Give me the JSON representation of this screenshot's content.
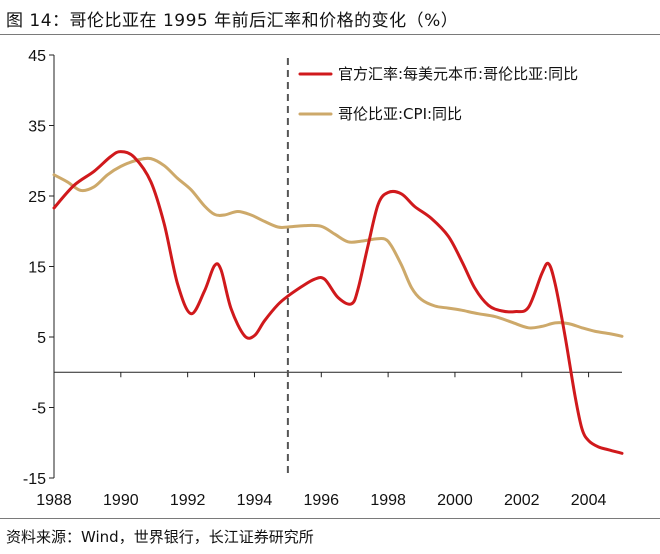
{
  "title": "图 14：哥伦比亚在 1995 年前后汇率和价格的变化（%）",
  "source": "资料来源：Wind，世界银行，长江证券研究所",
  "chart_data": {
    "type": "line",
    "title": "图 14：哥伦比亚在 1995 年前后汇率和价格的变化（%）",
    "xlabel": "",
    "ylabel": "",
    "xlim": [
      1988,
      2005
    ],
    "ylim": [
      -15,
      45
    ],
    "y_ticks": [
      "45",
      "35",
      "25",
      "15",
      "5",
      "-5",
      "-15"
    ],
    "x_ticks": [
      "1988",
      "1990",
      "1992",
      "1994",
      "1996",
      "1998",
      "2000",
      "2002",
      "2004"
    ],
    "grid": false,
    "legend_position": "top-right",
    "reference_line": {
      "x": 1995,
      "style": "dashed"
    },
    "series": [
      {
        "name": "官方汇率:每美元本币:哥伦比亚:同比",
        "color": "#d0191c",
        "x": [
          1988,
          1988.6,
          1989.2,
          1989.7,
          1990,
          1990.4,
          1990.9,
          1991.3,
          1991.7,
          1992.1,
          1992.5,
          1992.8,
          1993,
          1993.3,
          1993.7,
          1994,
          1994.3,
          1994.7,
          1995,
          1995.4,
          1995.8,
          1996.1,
          1996.5,
          1996.9,
          1997.1,
          1997.4,
          1997.7,
          1998,
          1998.4,
          1998.8,
          1999.3,
          1999.8,
          2000.2,
          2000.6,
          2001,
          2001.4,
          2001.8,
          2002.2,
          2002.6,
          2002.8,
          2003,
          2003.3,
          2003.6,
          2003.8,
          2004,
          2004.3,
          2004.6,
          2005
        ],
        "values": [
          23.3,
          26.5,
          28.5,
          30.6,
          31.3,
          30.5,
          27,
          21,
          12.5,
          8.3,
          11.5,
          15.1,
          14.5,
          9,
          5.2,
          5.2,
          7.3,
          9.6,
          10.8,
          12.1,
          13.2,
          13.2,
          10.6,
          9.7,
          11.8,
          18,
          23.8,
          25.5,
          25.3,
          23.5,
          21.8,
          19.3,
          15.8,
          11.9,
          9.5,
          8.7,
          8.6,
          9.2,
          14,
          15.4,
          12.5,
          5,
          -3.5,
          -8,
          -9.7,
          -10.6,
          -11,
          -11.5
        ]
      },
      {
        "name": "哥伦比亚:CPI:同比",
        "color": "#cda96a",
        "x": [
          1988,
          1988.4,
          1988.8,
          1989.2,
          1989.6,
          1990,
          1990.5,
          1990.9,
          1991.3,
          1991.7,
          1992.1,
          1992.5,
          1992.8,
          1993.1,
          1993.5,
          1993.9,
          1994.3,
          1994.7,
          1995,
          1995.5,
          1996,
          1996.4,
          1996.8,
          1997.2,
          1997.6,
          1997.9,
          1998.1,
          1998.4,
          1998.7,
          1999,
          1999.4,
          1999.8,
          2000.2,
          2000.7,
          2001.2,
          2001.7,
          2002.2,
          2002.6,
          2003,
          2003.4,
          2003.8,
          2004.2,
          2004.6,
          2005
        ],
        "values": [
          28,
          27,
          25.8,
          26.3,
          28,
          29.2,
          30.1,
          30.3,
          29.3,
          27.5,
          25.9,
          23.6,
          22.4,
          22.3,
          22.8,
          22.3,
          21.4,
          20.6,
          20.6,
          20.8,
          20.7,
          19.6,
          18.5,
          18.6,
          18.9,
          18.9,
          17.9,
          15.2,
          12,
          10.3,
          9.4,
          9.1,
          8.8,
          8.3,
          7.9,
          7.1,
          6.3,
          6.5,
          7,
          6.9,
          6.3,
          5.8,
          5.5,
          5.1
        ]
      }
    ]
  }
}
